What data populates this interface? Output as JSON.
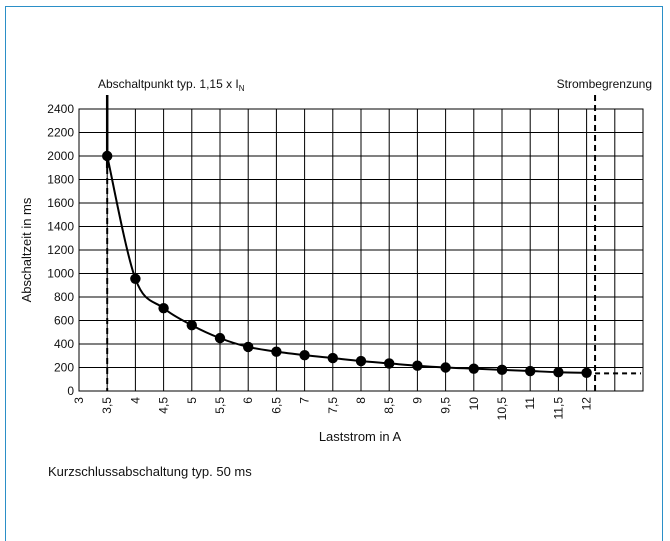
{
  "chart_data": {
    "type": "line",
    "title": "",
    "xlabel": "Laststrom in A",
    "ylabel": "Abschaltzeit in ms",
    "xlim": [
      3,
      13
    ],
    "ylim": [
      0,
      2400
    ],
    "x_ticks": [
      "3",
      "3,5",
      "4",
      "4,5",
      "5",
      "5,5",
      "6",
      "6,5",
      "7",
      "7,5",
      "8",
      "8,5",
      "9",
      "9,5",
      "10",
      "10,5",
      "11",
      "11,5",
      "12"
    ],
    "y_ticks": [
      "0",
      "200",
      "400",
      "600",
      "800",
      "1000",
      "1200",
      "1400",
      "1600",
      "1800",
      "2000",
      "2200",
      "2400"
    ],
    "grid": true,
    "series": [
      {
        "x": [
          3.5,
          4,
          4.5,
          5,
          5.5,
          6,
          6.5,
          7,
          7.5,
          8,
          8.5,
          9,
          9.5,
          10,
          10.5,
          11,
          11.5,
          12
        ],
        "y": [
          2000,
          955,
          705,
          560,
          450,
          375,
          335,
          305,
          280,
          255,
          235,
          215,
          200,
          190,
          180,
          170,
          160,
          155
        ]
      }
    ],
    "annotations": [
      {
        "text": "Abschaltpunkt typ. 1,15 x I",
        "subscript": "N",
        "x": 3.5
      },
      {
        "text": "Strombegrenzung",
        "x": 12.15
      }
    ],
    "footnote": "Kurzschlussabschaltung typ. 50 ms",
    "colors": {
      "line": "#000000",
      "grid": "#000000",
      "frame": "#2b8fc7"
    }
  }
}
